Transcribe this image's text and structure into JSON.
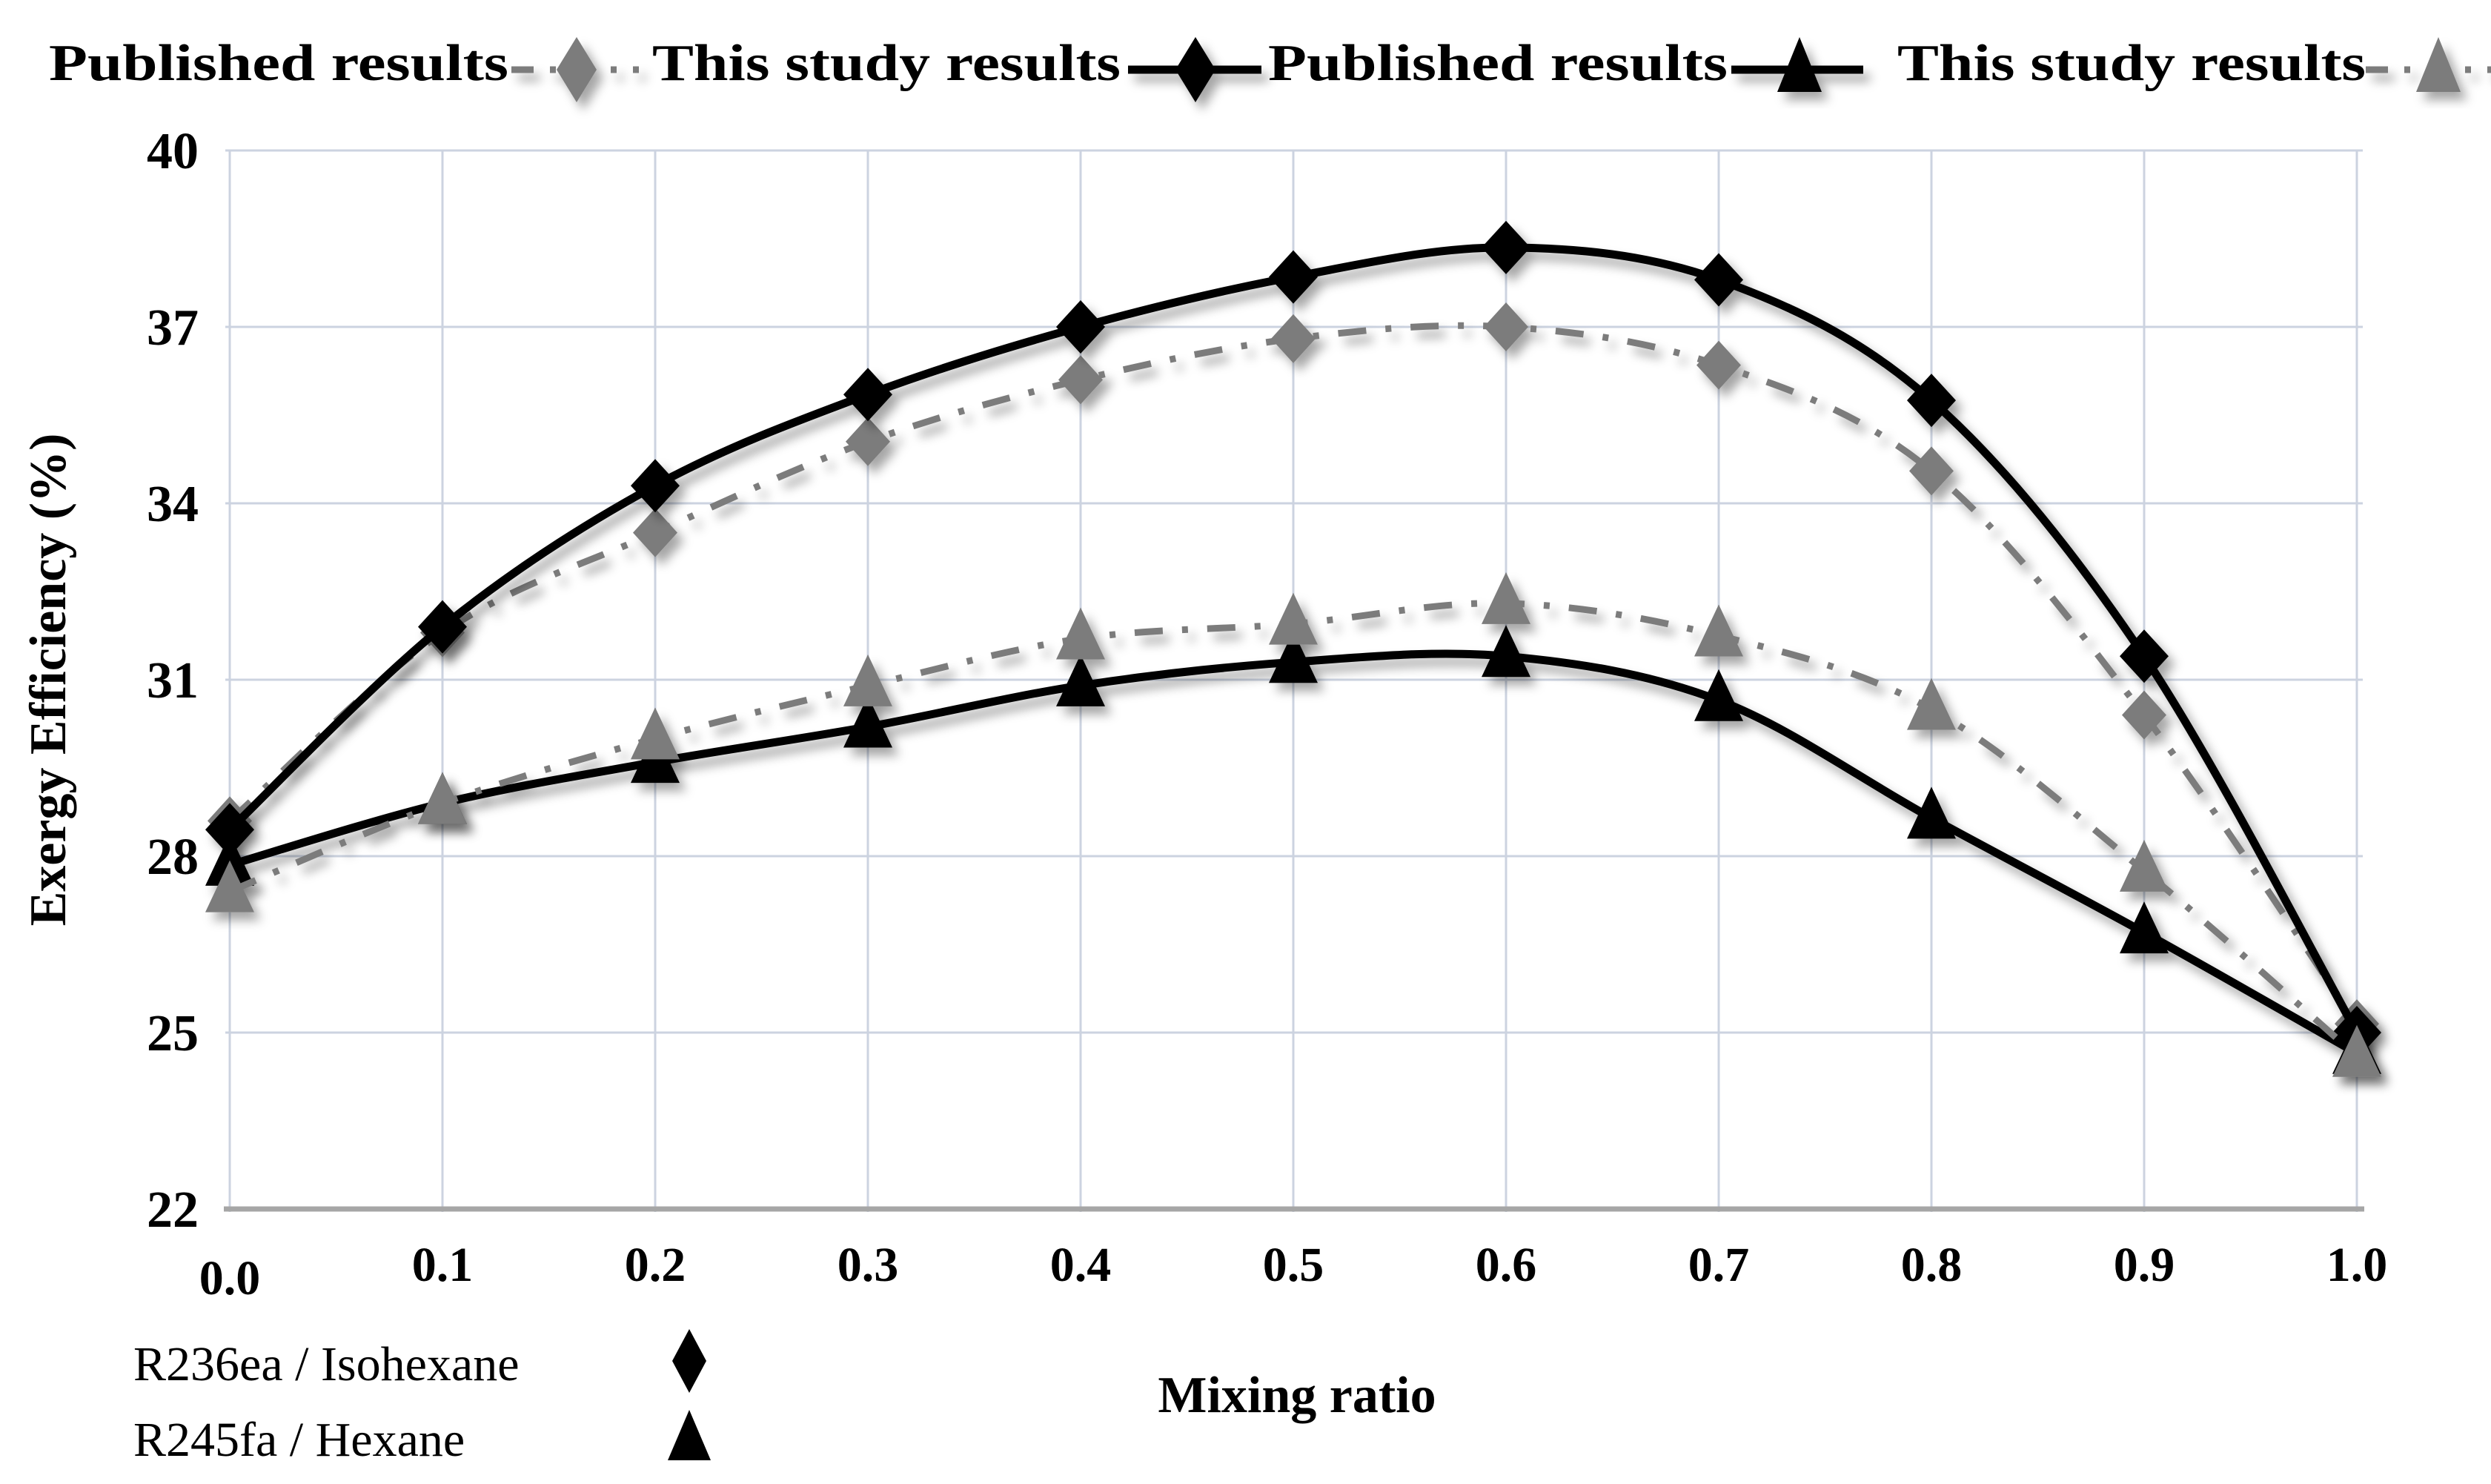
{
  "figure": {
    "background": "#ffffff",
    "grid_color": "#ccd3e0",
    "axis_line_color": "#a6a6a6",
    "black_series_color": "#000000",
    "gray_series_color": "#7b7b7b"
  },
  "legend_top": {
    "items": [
      {
        "label": "Published results",
        "marker": "diamond",
        "color": "gray",
        "line": "dashdot"
      },
      {
        "label": "This study results",
        "marker": "diamond",
        "color": "black",
        "line": "solid"
      },
      {
        "label": "Published results",
        "marker": "triangle",
        "color": "black",
        "line": "solid"
      },
      {
        "label": "This study results",
        "marker": "triangle",
        "color": "gray",
        "line": "dashdot"
      }
    ]
  },
  "series_key": {
    "items": [
      {
        "label": "R236ea / Isohexane",
        "marker": "diamond"
      },
      {
        "label": "R245fa / Hexane",
        "marker": "triangle"
      }
    ]
  },
  "chart_data": {
    "type": "line",
    "title": "",
    "xlabel": "Mixing ratio",
    "ylabel": "Exergy Efficiency (%)",
    "xlim": [
      0.0,
      1.0
    ],
    "ylim": [
      22,
      40
    ],
    "grid": true,
    "legend_position": "top",
    "x": [
      0.0,
      0.1,
      0.2,
      0.3,
      0.4,
      0.5,
      0.6,
      0.7,
      0.8,
      0.9,
      1.0
    ],
    "xtick_labels": [
      "0.0",
      "0.1",
      "0.2",
      "0.3",
      "0.4",
      "0.5",
      "0.6",
      "0.7",
      "0.8",
      "0.9",
      "1.0"
    ],
    "yticks": [
      22,
      25,
      28,
      31,
      34,
      37,
      40
    ],
    "ytick_labels": [
      "22",
      "25",
      "28",
      "31",
      "34",
      "37",
      "40"
    ],
    "series": [
      {
        "id": "published-diamond",
        "name": "Published results (R236ea / Isohexane)",
        "marker": "diamond",
        "color": "#7b7b7b",
        "line": "dashdot",
        "values": [
          28.6,
          31.8,
          33.5,
          35.05,
          36.1,
          36.8,
          37.0,
          36.35,
          34.55,
          30.4,
          25.15
        ]
      },
      {
        "id": "this-study-diamond",
        "name": "This study results (R236ea / Isohexane)",
        "marker": "diamond",
        "color": "#000000",
        "line": "solid",
        "values": [
          28.45,
          31.9,
          34.3,
          35.85,
          37.0,
          37.85,
          38.35,
          37.8,
          35.75,
          31.4,
          25.0
        ]
      },
      {
        "id": "published-triangle",
        "name": "Published results (R245fa / Hexane)",
        "marker": "triangle",
        "color": "#000000",
        "line": "solid",
        "values": [
          27.85,
          28.9,
          29.6,
          30.2,
          30.9,
          31.3,
          31.4,
          30.65,
          28.65,
          26.7,
          24.65
        ]
      },
      {
        "id": "this-study-triangle",
        "name": "This study results (R245fa / Hexane)",
        "marker": "triangle",
        "color": "#7b7b7b",
        "line": "dashdot",
        "values": [
          27.4,
          28.9,
          30.0,
          30.9,
          31.7,
          31.95,
          32.3,
          31.75,
          30.5,
          27.75,
          24.6
        ]
      }
    ]
  }
}
